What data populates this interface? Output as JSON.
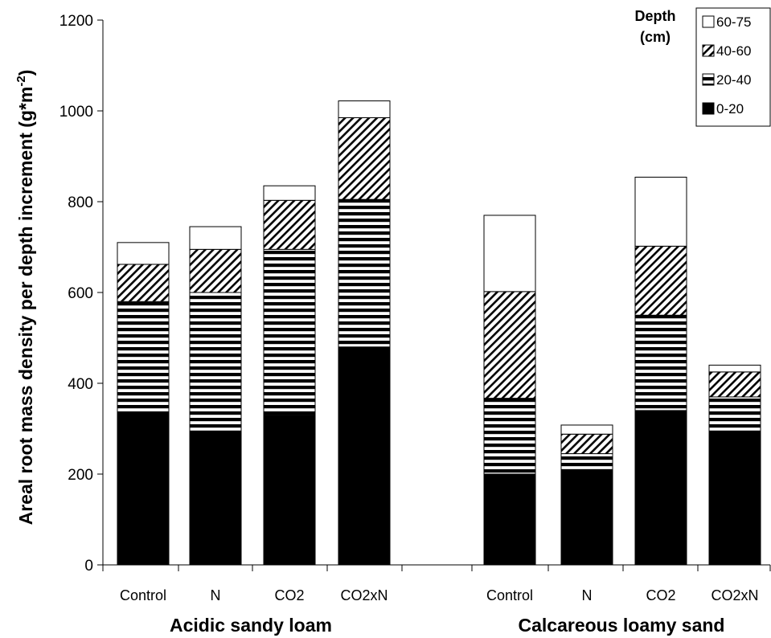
{
  "chart_data": {
    "type": "bar",
    "stacked": true,
    "ylabel": "Areal root mass density per depth increment (g*m",
    "ylabel_sup": "-2",
    "ylabel_close": ")",
    "ylim": [
      0,
      1200
    ],
    "yticks": [
      "0",
      "200",
      "400",
      "600",
      "800",
      "1000",
      "1200"
    ],
    "grid": false,
    "legend_title": [
      "Depth",
      "(cm)"
    ],
    "legend_position": "top-right",
    "series": [
      {
        "name": "0-20",
        "pattern": "solid"
      },
      {
        "name": "20-40",
        "pattern": "horizontal-stripes"
      },
      {
        "name": "40-60",
        "pattern": "diagonal-hatch"
      },
      {
        "name": "60-75",
        "pattern": "white"
      }
    ],
    "groups": [
      {
        "label": "Acidic sandy loam",
        "categories": [
          "Control",
          "N",
          "CO2",
          "CO2xN"
        ],
        "values": {
          "0-20": [
            335,
            295,
            330,
            480
          ],
          "20-40": [
            245,
            305,
            365,
            325
          ],
          "40-60": [
            82,
            95,
            108,
            180
          ],
          "60-75": [
            48,
            50,
            32,
            37
          ]
        }
      },
      {
        "label": "Calcareous loamy sand",
        "categories": [
          "Control",
          "N",
          "CO2",
          "CO2xN"
        ],
        "values": {
          "0-20": [
            200,
            210,
            340,
            295
          ],
          "20-40": [
            167,
            35,
            210,
            75
          ],
          "40-60": [
            235,
            43,
            152,
            55
          ],
          "60-75": [
            168,
            20,
            152,
            15
          ]
        }
      }
    ]
  }
}
